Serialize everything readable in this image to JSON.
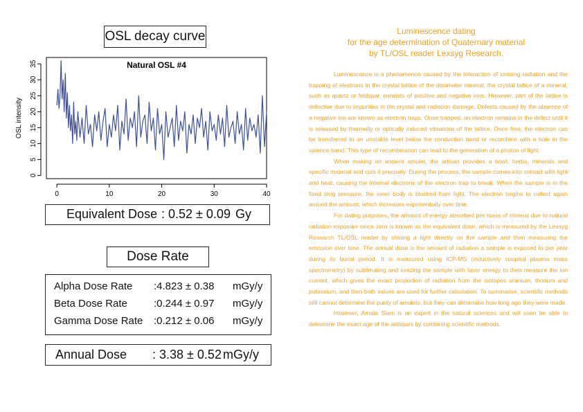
{
  "left": {
    "osl_title": "OSL decay curve",
    "equivalent_dose": {
      "label": "Equivalent Dose",
      "value": ": 0.52 ± 0.09",
      "unit": "Gy"
    },
    "dose_rate_title": "Dose Rate",
    "dose_rates": [
      {
        "label": "Alpha Dose Rate",
        "value": ":4.823 ± 0.38",
        "unit": "mGy/y"
      },
      {
        "label": "Beta Dose Rate",
        "value": ":0.244 ± 0.97",
        "unit": "mGy/y"
      },
      {
        "label": "Gamma Dose Rate",
        "value": ":0.212 ± 0.06",
        "unit": "mGy/y"
      }
    ],
    "annual_dose": {
      "label": "Annual Dose",
      "value": ": 3.38 ± 0.52",
      "unit": "mGy/y"
    }
  },
  "right": {
    "title_lines": [
      "Luminescence dating",
      "for the age determination of Quaternary material",
      "by TL/OSL reader Lexsyg Research."
    ],
    "paragraphs": [
      "Luminescence is a phenomenon caused by the interaction of ionising radiation and the trapping of electrons in the crystal lattice of the dosimeter mineral. the crystal lattice of a mineral, such as quartz or feldspar, consists of positive and negative ions. However, part of the lattice is defective due to impurities in the crystal and radiation damage. Defects caused by the absence of a negative ion are known as electron traps. Once trapped, an electron remains in the defect until it is released by thermally or optically induced vibrations of the lattice. Once free, the electron can be transferred to an unstable level below the conduction band or recombine with a hole in the valence band. This type of recombination can lead to the generation of a photon of light.",
      "When making an ancient amulet, the artisan provides a bowl, herbs, minerals and specific material and cuts it precisely. During the process, the sample comes into contact with light and heat, causing the internal electrons of the electron trap to break. When the sample is in the fixed blog pressure, the inner body is blocked from light. The electron begins to collect again around the amount, which increases exponentially over time.",
      "For dating purposes, the amount of energy absorbed per mass of mineral due to natural radiation exposure since zero is known as the equivalent dose, which is measured by the Lexsyg Research TL/OSL reader by shining a light directly on the sample and then measuring the emission over time. The annual dose is the amount of radiation a sample is exposed to per year during its burial period. It is measured using ICP-MS (inductively coupled plasma mass spectrometry) by sublimating and ionizing the sample with laser energy to then measure the ion current, which gives the exact proportion of radiation from the isotopes uranium, thorium and potassium, and then both values are used for further calculation. To summarise, scientific methods still cannot determine the purity of amulets, but they can determine how long ago they were made.",
      "However, Amata Siam is an expert in the natural sciences and will soon be able to determine the exact age of the antiques by combining scientific methods."
    ]
  },
  "chart_data": {
    "type": "line",
    "title": "Natural OSL #4",
    "xlabel": "",
    "ylabel": "OSL intensity",
    "xlim": [
      -2,
      40
    ],
    "ylim": [
      -1,
      37
    ],
    "xticks": [
      0,
      10,
      20,
      30,
      40
    ],
    "yticks": [
      0,
      5,
      10,
      15,
      20,
      25,
      30,
      35
    ],
    "grid": false,
    "color": "#3a4fa0",
    "x": [
      0,
      0.2,
      0.4,
      0.6,
      0.8,
      1.0,
      1.2,
      1.4,
      1.6,
      1.8,
      2.0,
      2.2,
      2.4,
      2.6,
      2.8,
      3.0,
      3.2,
      3.4,
      3.6,
      3.8,
      4.0,
      4.4,
      4.8,
      5.2,
      5.6,
      6.0,
      6.4,
      6.8,
      7.2,
      7.6,
      8.0,
      8.4,
      8.8,
      9.2,
      9.6,
      10.0,
      10.4,
      10.8,
      11.2,
      11.6,
      12.0,
      12.4,
      12.8,
      13.2,
      13.6,
      14.0,
      14.4,
      14.8,
      15.2,
      15.6,
      16.0,
      16.4,
      16.8,
      17.2,
      17.6,
      18.0,
      18.4,
      18.8,
      19.2,
      19.6,
      20.0,
      20.4,
      20.8,
      21.2,
      21.6,
      22.0,
      22.4,
      22.8,
      23.2,
      23.6,
      24.0,
      24.4,
      24.8,
      25.2,
      25.6,
      26.0,
      26.4,
      26.8,
      27.2,
      27.6,
      28.0,
      28.4,
      28.8,
      29.2,
      29.6,
      30.0,
      30.4,
      30.8,
      31.2,
      31.6,
      32.0,
      32.4,
      32.8,
      33.2,
      33.6,
      34.0,
      34.4,
      34.8,
      35.2,
      35.6,
      36.0,
      36.4,
      36.8,
      37.2,
      37.6,
      38.0,
      38.4,
      38.8,
      39.2,
      39.6,
      40.0
    ],
    "y": [
      22,
      27,
      21,
      25,
      36,
      24,
      30,
      20,
      32,
      18,
      26,
      15,
      22,
      14,
      19,
      10,
      23,
      13,
      17,
      11,
      20,
      12,
      18,
      10,
      22,
      13,
      16,
      9,
      19,
      14,
      20,
      11,
      17,
      21,
      9,
      16,
      12,
      19,
      14,
      22,
      8,
      17,
      13,
      24,
      11,
      18,
      15,
      20,
      9,
      25,
      12,
      17,
      19,
      10,
      23,
      14,
      18,
      8,
      21,
      13,
      16,
      5,
      20,
      12,
      15,
      18,
      9,
      22,
      11,
      17,
      14,
      20,
      7,
      16,
      13,
      19,
      10,
      18,
      15,
      21,
      12,
      17,
      8,
      20,
      14,
      16,
      11,
      19,
      13,
      18,
      9,
      22,
      12,
      15,
      17,
      10,
      20,
      13,
      16,
      8,
      21,
      11,
      18,
      14,
      16,
      12,
      19,
      7,
      25,
      9,
      20
    ]
  }
}
